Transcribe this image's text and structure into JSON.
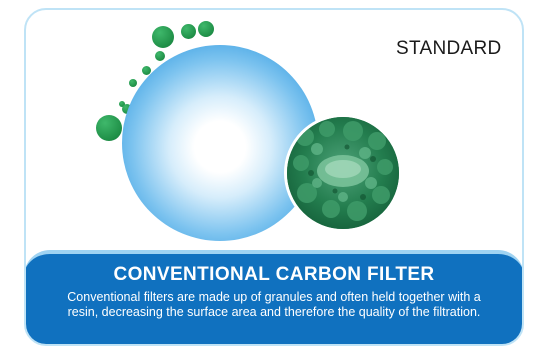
{
  "badge": {
    "label": "STANDARD"
  },
  "panel": {
    "title": "CONVENTIONAL CARBON FILTER",
    "description": "Conventional filters are made up of granules and often held together with a resin, decreasing the surface area and therefore the quality of the filtration."
  },
  "colors": {
    "panel_blue": "#1071bf",
    "border_light_blue": "#bfe3f6",
    "particle_green": "#1f8f47",
    "sphere_blue": "#3a9fe2"
  },
  "icons": {
    "sphere": "filter-sphere-icon",
    "carbon": "carbon-granules-icon",
    "particles": "green-particles-icon"
  }
}
